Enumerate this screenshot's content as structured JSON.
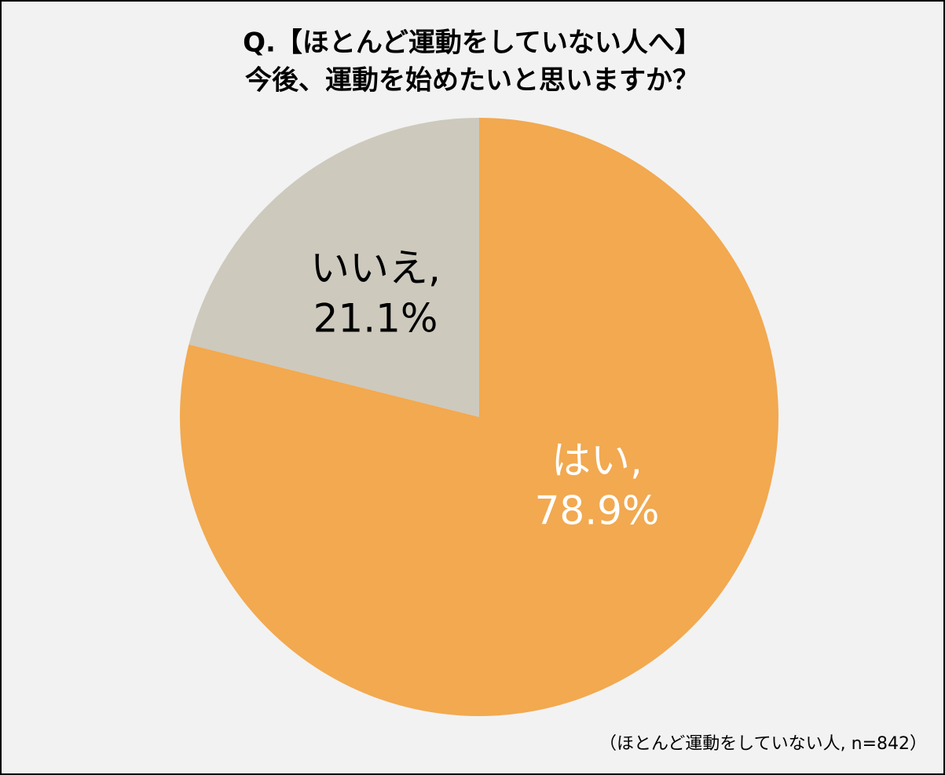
{
  "chart_data": {
    "type": "pie",
    "title": [
      "Q.【ほとんど運動をしていない人へ】",
      "今後、運動を始めたいと思いますか？"
    ],
    "categories": [
      "はい,",
      "いいえ,"
    ],
    "values": [
      78.9,
      21.1
    ],
    "value_labels": [
      "78.9%",
      "21.1%"
    ],
    "colors": [
      "#f2a950",
      "#cdc9bd"
    ],
    "label_colors": [
      "#ffffff",
      "#000000"
    ],
    "note": "（ほとんど運動をしていない人, n=842）"
  }
}
